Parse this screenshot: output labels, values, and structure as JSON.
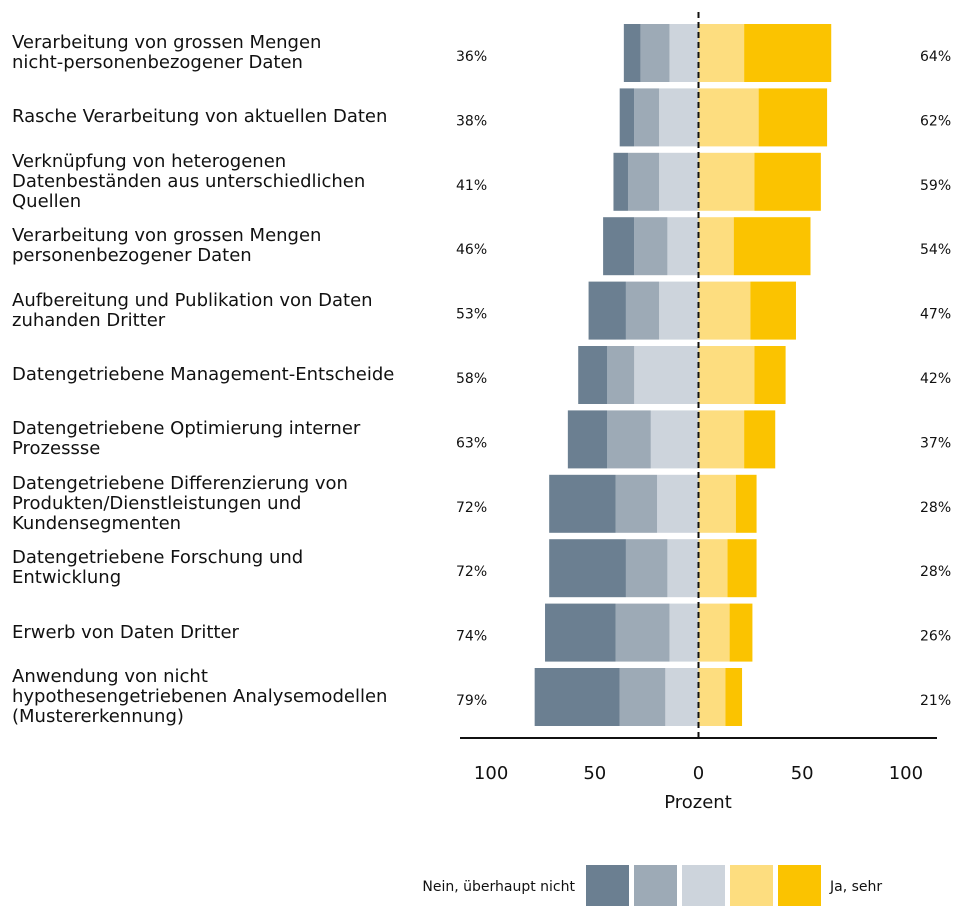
{
  "chart_data": {
    "type": "diverging_bar",
    "categories": [
      "Verarbeitung von grossen Mengen\nnicht-personenbezogener Daten",
      "Rasche Verarbeitung von aktuellen Daten",
      "Verknüpfung von heterogenen\nDatenbeständen aus unterschiedlichen\nQuellen",
      "Verarbeitung von grossen Mengen\npersonenbezogener Daten",
      "Aufbereitung und Publikation von Daten\nzuhanden Dritter",
      "Datengetriebene Management-Entscheide",
      "Datengetriebene Optimierung interner\nProzessse",
      "Datengetriebene Differenzierung von\nProdukten/Dienstleistungen und\nKundensegmenten",
      "Datengetriebene Forschung und\nEntwicklung",
      "Erwerb von Daten Dritter",
      "Anwendung von nicht\nhypothesengetriebenen Analysemodellen\n(Mustererkennung)"
    ],
    "series": [
      {
        "name": "Nein, überhaupt nicht",
        "color": "#6b7f91",
        "values": [
          -8,
          -7,
          -7,
          -15,
          -18,
          -14,
          -19,
          -32,
          -37,
          -34,
          -41
        ]
      },
      {
        "name": null,
        "color": "#9daab6",
        "values": [
          -14,
          -12,
          -15,
          -16,
          -16,
          -13,
          -21,
          -20,
          -20,
          -26,
          -22
        ]
      },
      {
        "name": null,
        "color": "#cdd4dc",
        "values": [
          -14,
          -19,
          -19,
          -15,
          -19,
          -31,
          -23,
          -20,
          -15,
          -14,
          -16
        ]
      },
      {
        "name": null,
        "color": "#fddd7f",
        "values": [
          22,
          29,
          27,
          17,
          25,
          27,
          22,
          18,
          14,
          15,
          13
        ]
      },
      {
        "name": "Ja, sehr",
        "color": "#fbc300",
        "values": [
          42,
          33,
          32,
          37,
          22,
          15,
          15,
          10,
          14,
          11,
          8
        ]
      }
    ],
    "left_totals": {
      "values": [
        36,
        38,
        41,
        46,
        53,
        58,
        63,
        72,
        72,
        74,
        79
      ],
      "value_labels": [
        "36%",
        "38%",
        "41%",
        "46%",
        "53%",
        "58%",
        "63%",
        "72%",
        "72%",
        "74%",
        "79%"
      ]
    },
    "right_totals": {
      "values": [
        64,
        62,
        59,
        54,
        47,
        42,
        37,
        28,
        28,
        26,
        21
      ],
      "value_labels": [
        "64%",
        "62%",
        "59%",
        "54%",
        "47%",
        "42%",
        "37%",
        "28%",
        "28%",
        "26%",
        "21%"
      ]
    },
    "xlim": [
      -115,
      115
    ],
    "xticks": [
      {
        "value": -100,
        "label": "100"
      },
      {
        "value": -50,
        "label": "50"
      },
      0,
      50,
      100
    ],
    "xlabel": "Prozent"
  }
}
